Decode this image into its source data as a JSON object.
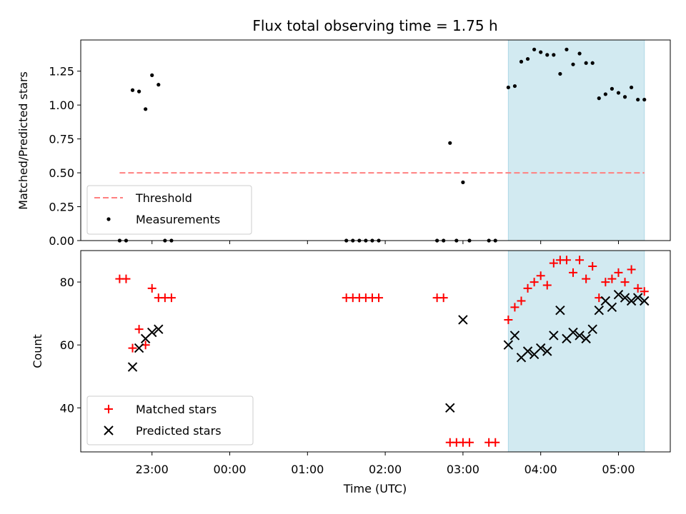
{
  "chart_data": [
    {
      "type": "scatter",
      "title": "Flux total observing time = 1.75 h",
      "xlabel": "",
      "ylabel": "Matched/Predicted stars",
      "ylim": [
        0,
        1.48
      ],
      "yticks": [
        "0.00",
        "0.25",
        "0.50",
        "0.75",
        "1.00",
        "1.25"
      ],
      "ytick_values": [
        0,
        0.25,
        0.5,
        0.75,
        1.0,
        1.25
      ],
      "highlight": {
        "x_start": "03:35",
        "x_end": "05:20",
        "color": "#add8e6"
      },
      "threshold": {
        "name": "Threshold",
        "value": 0.5,
        "x_start": "22:35",
        "x_end": "05:20",
        "color": "#ff8080",
        "style": "dashed"
      },
      "legend_position": "lower-left",
      "series": [
        {
          "name": "Measurements",
          "marker": "dot",
          "color": "#000000",
          "points": [
            [
              "22:35",
              0
            ],
            [
              "22:40",
              0
            ],
            [
              "22:45",
              1.11
            ],
            [
              "22:50",
              1.1
            ],
            [
              "22:55",
              0.97
            ],
            [
              "23:00",
              1.22
            ],
            [
              "23:05",
              1.15
            ],
            [
              "23:10",
              0
            ],
            [
              "23:15",
              0
            ],
            [
              "01:30",
              0
            ],
            [
              "01:35",
              0
            ],
            [
              "01:40",
              0
            ],
            [
              "01:45",
              0
            ],
            [
              "01:50",
              0
            ],
            [
              "01:55",
              0
            ],
            [
              "02:40",
              0
            ],
            [
              "02:45",
              0
            ],
            [
              "02:50",
              0.72
            ],
            [
              "02:55",
              0
            ],
            [
              "03:00",
              0.43
            ],
            [
              "03:05",
              0
            ],
            [
              "03:20",
              0
            ],
            [
              "03:25",
              0
            ],
            [
              "03:35",
              1.13
            ],
            [
              "03:40",
              1.14
            ],
            [
              "03:45",
              1.32
            ],
            [
              "03:50",
              1.34
            ],
            [
              "03:55",
              1.41
            ],
            [
              "04:00",
              1.39
            ],
            [
              "04:05",
              1.37
            ],
            [
              "04:10",
              1.37
            ],
            [
              "04:15",
              1.23
            ],
            [
              "04:20",
              1.41
            ],
            [
              "04:25",
              1.3
            ],
            [
              "04:30",
              1.38
            ],
            [
              "04:35",
              1.31
            ],
            [
              "04:40",
              1.31
            ],
            [
              "04:45",
              1.05
            ],
            [
              "04:50",
              1.08
            ],
            [
              "04:55",
              1.12
            ],
            [
              "05:00",
              1.09
            ],
            [
              "05:05",
              1.06
            ],
            [
              "05:10",
              1.13
            ],
            [
              "05:15",
              1.04
            ],
            [
              "05:20",
              1.04
            ]
          ]
        }
      ]
    },
    {
      "type": "scatter",
      "title": "",
      "xlabel": "Time (UTC)",
      "ylabel": "Count",
      "ylim": [
        26,
        90
      ],
      "yticks": [
        "40",
        "60",
        "80"
      ],
      "ytick_values": [
        40,
        60,
        80
      ],
      "xlim": [
        "22:05",
        "05:40"
      ],
      "xticks": [
        "23:00",
        "00:00",
        "01:00",
        "02:00",
        "03:00",
        "04:00",
        "05:00"
      ],
      "highlight": {
        "x_start": "03:35",
        "x_end": "05:20",
        "color": "#add8e6"
      },
      "legend_position": "lower-left",
      "series": [
        {
          "name": "Matched stars",
          "marker": "plus",
          "color": "#ff0000",
          "points": [
            [
              "22:35",
              81
            ],
            [
              "22:40",
              81
            ],
            [
              "22:45",
              59
            ],
            [
              "22:50",
              65
            ],
            [
              "22:55",
              60
            ],
            [
              "23:00",
              78
            ],
            [
              "23:05",
              75
            ],
            [
              "23:10",
              75
            ],
            [
              "23:15",
              75
            ],
            [
              "01:30",
              75
            ],
            [
              "01:35",
              75
            ],
            [
              "01:40",
              75
            ],
            [
              "01:45",
              75
            ],
            [
              "01:50",
              75
            ],
            [
              "01:55",
              75
            ],
            [
              "02:40",
              75
            ],
            [
              "02:45",
              75
            ],
            [
              "02:50",
              29
            ],
            [
              "02:55",
              29
            ],
            [
              "03:00",
              29
            ],
            [
              "03:05",
              29
            ],
            [
              "03:20",
              29
            ],
            [
              "03:25",
              29
            ],
            [
              "03:35",
              68
            ],
            [
              "03:40",
              72
            ],
            [
              "03:45",
              74
            ],
            [
              "03:50",
              78
            ],
            [
              "03:55",
              80
            ],
            [
              "04:00",
              82
            ],
            [
              "04:05",
              79
            ],
            [
              "04:10",
              86
            ],
            [
              "04:15",
              87
            ],
            [
              "04:20",
              87
            ],
            [
              "04:25",
              83
            ],
            [
              "04:30",
              87
            ],
            [
              "04:35",
              81
            ],
            [
              "04:40",
              85
            ],
            [
              "04:45",
              75
            ],
            [
              "04:50",
              80
            ],
            [
              "04:55",
              81
            ],
            [
              "05:00",
              83
            ],
            [
              "05:05",
              80
            ],
            [
              "05:10",
              84
            ],
            [
              "05:15",
              78
            ],
            [
              "05:20",
              77
            ]
          ]
        },
        {
          "name": "Predicted stars",
          "marker": "x",
          "color": "#000000",
          "points": [
            [
              "22:45",
              53
            ],
            [
              "22:50",
              59
            ],
            [
              "22:55",
              62
            ],
            [
              "23:00",
              64
            ],
            [
              "23:05",
              65
            ],
            [
              "02:50",
              40
            ],
            [
              "03:00",
              68
            ],
            [
              "03:35",
              60
            ],
            [
              "03:40",
              63
            ],
            [
              "03:45",
              56
            ],
            [
              "03:50",
              58
            ],
            [
              "03:55",
              57
            ],
            [
              "04:00",
              59
            ],
            [
              "04:05",
              58
            ],
            [
              "04:10",
              63
            ],
            [
              "04:15",
              71
            ],
            [
              "04:20",
              62
            ],
            [
              "04:25",
              64
            ],
            [
              "04:30",
              63
            ],
            [
              "04:35",
              62
            ],
            [
              "04:40",
              65
            ],
            [
              "04:45",
              71
            ],
            [
              "04:50",
              74
            ],
            [
              "04:55",
              72
            ],
            [
              "05:00",
              76
            ],
            [
              "05:05",
              75
            ],
            [
              "05:10",
              74
            ],
            [
              "05:15",
              75
            ],
            [
              "05:20",
              74
            ]
          ]
        }
      ]
    }
  ]
}
